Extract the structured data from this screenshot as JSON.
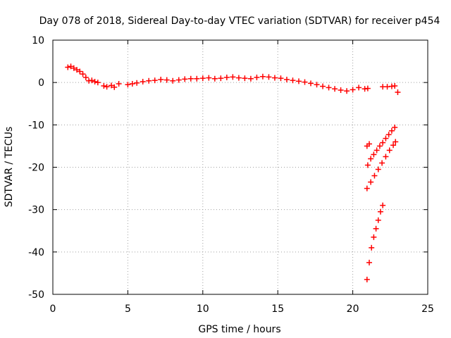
{
  "chart_data": {
    "type": "scatter",
    "title": "Day 078 of 2018, Sidereal Day-to-day VTEC variation (SDTVAR) for receiver p454",
    "xlabel": "GPS time / hours",
    "ylabel": "SDTVAR / TECUs",
    "xlim": [
      0,
      25
    ],
    "ylim": [
      -50,
      10
    ],
    "xticks": [
      0,
      5,
      10,
      15,
      20,
      25
    ],
    "xtick_labels": [
      "0",
      "5",
      "10",
      "15",
      "20",
      "25"
    ],
    "yticks": [
      -50,
      -40,
      -30,
      -20,
      -10,
      0,
      10
    ],
    "ytick_labels": [
      "-50",
      "-40",
      "-30",
      "-20",
      "-10",
      "0",
      "10"
    ],
    "grid": true,
    "legend": "none",
    "marker": "+",
    "color": "#ff0000",
    "series": [
      {
        "x": [
          1.0,
          1.2,
          1.4,
          1.6,
          1.8,
          2.0,
          2.2,
          2.4,
          2.6,
          2.8,
          3.0,
          3.4,
          3.6,
          3.9,
          4.1,
          4.4,
          5.0,
          5.3,
          5.6,
          6.0,
          6.4,
          6.8,
          7.2,
          7.6,
          8.0,
          8.4,
          8.8,
          9.2,
          9.6,
          10.0,
          10.4,
          10.8,
          11.2,
          11.6,
          12.0,
          12.4,
          12.8,
          13.2,
          13.6,
          14.0,
          14.4,
          14.8,
          15.2,
          15.6,
          16.0,
          16.4,
          16.8,
          17.2,
          17.6,
          18.0,
          18.4,
          18.8,
          19.2,
          19.6,
          20.0,
          20.4,
          20.8,
          21.0,
          21.0,
          21.2,
          21.4,
          21.6,
          21.8,
          22.0,
          22.2,
          22.4,
          22.6,
          22.8,
          20.95,
          21.2,
          21.45,
          21.7,
          21.95,
          22.2,
          22.45,
          22.7,
          22.85,
          20.95,
          21.1,
          21.25,
          21.4,
          21.55,
          21.7,
          21.85,
          22.0,
          20.95,
          21.1,
          22.0,
          22.3,
          22.6,
          22.8,
          23.0
        ],
        "y": [
          3.6,
          3.8,
          3.4,
          3.0,
          2.6,
          2.0,
          1.2,
          0.4,
          0.5,
          0.2,
          0.0,
          -0.8,
          -1.0,
          -0.7,
          -1.1,
          -0.3,
          -0.5,
          -0.3,
          -0.1,
          0.2,
          0.4,
          0.5,
          0.7,
          0.6,
          0.4,
          0.6,
          0.8,
          0.9,
          0.9,
          1.0,
          1.1,
          0.9,
          1.0,
          1.2,
          1.3,
          1.1,
          1.0,
          0.9,
          1.2,
          1.4,
          1.3,
          1.1,
          1.0,
          0.7,
          0.5,
          0.3,
          0.1,
          -0.2,
          -0.5,
          -0.9,
          -1.2,
          -1.5,
          -1.8,
          -2.0,
          -1.7,
          -1.2,
          -1.5,
          -1.4,
          -19.5,
          -18.0,
          -17.0,
          -16.0,
          -15.0,
          -14.2,
          -13.2,
          -12.3,
          -11.4,
          -10.6,
          -25.0,
          -23.5,
          -22.0,
          -20.5,
          -19.0,
          -17.5,
          -16.0,
          -14.8,
          -14.0,
          -46.5,
          -42.5,
          -39.0,
          -36.5,
          -34.5,
          -32.5,
          -30.5,
          -29.0,
          -15.0,
          -14.5,
          -1.0,
          -1.0,
          -0.9,
          -0.8,
          -2.3
        ]
      }
    ]
  }
}
